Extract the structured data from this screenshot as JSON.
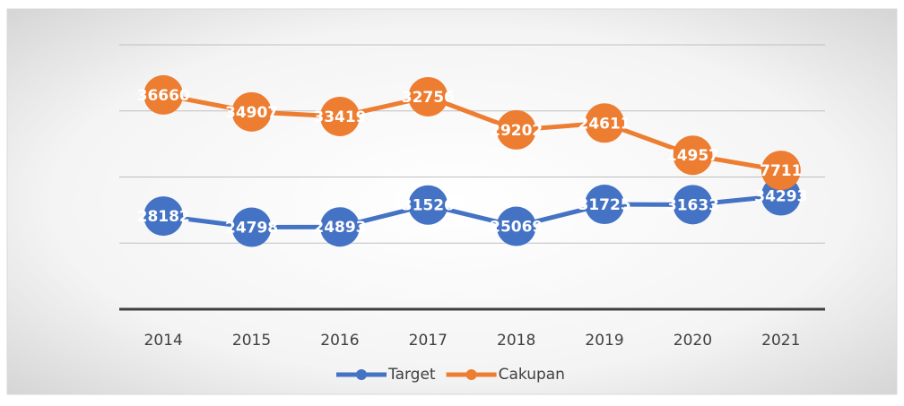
{
  "chart_data": {
    "type": "line",
    "stacked": true,
    "categories": [
      "2014",
      "2015",
      "2016",
      "2017",
      "2018",
      "2019",
      "2020",
      "2021"
    ],
    "series": [
      {
        "name": "Target",
        "color": "#4472c4",
        "values": [
          28182,
          24798,
          24893,
          31526,
          25069,
          31725,
          31633,
          34293
        ]
      },
      {
        "name": "Cakupan",
        "color": "#ed7d31",
        "values": [
          36660,
          34907,
          33419,
          32756,
          29202,
          24611,
          14957,
          7711
        ]
      }
    ],
    "ylim": [
      0,
      80000
    ],
    "yticks": [
      0,
      20000,
      40000,
      60000,
      80000
    ],
    "grid": true
  }
}
